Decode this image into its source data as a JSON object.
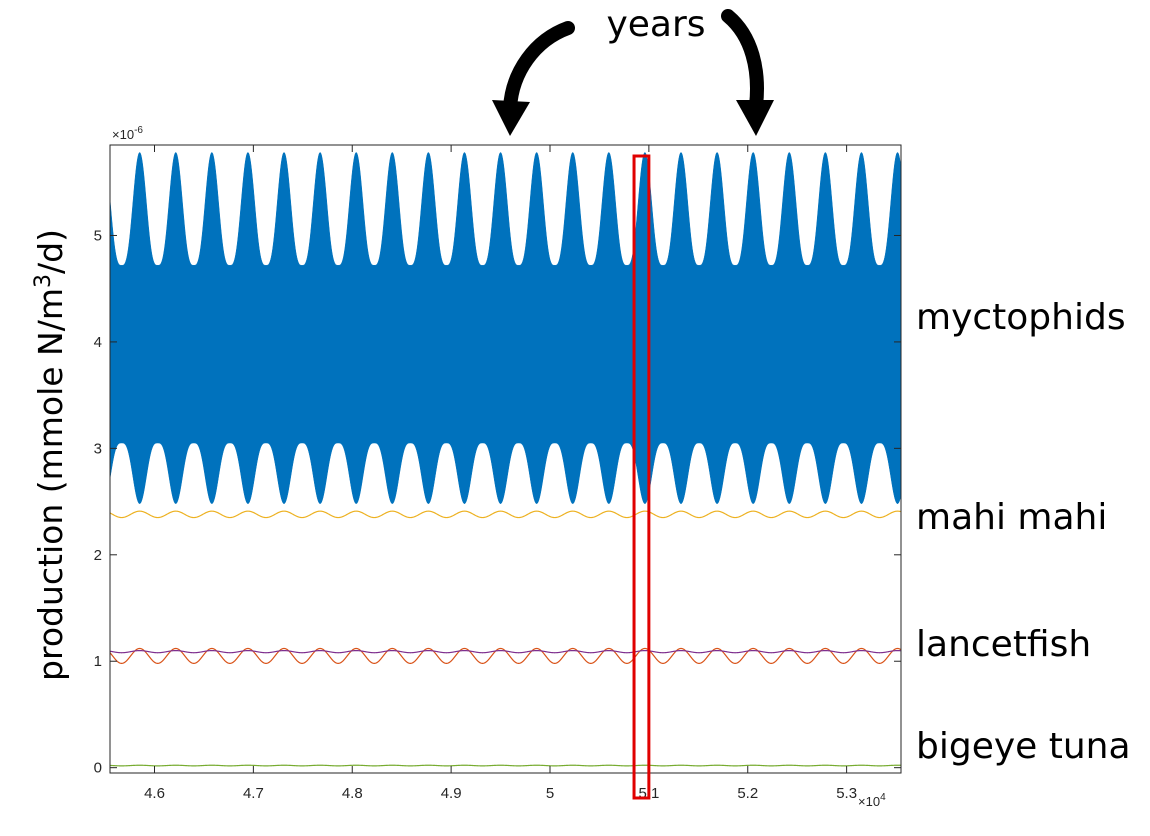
{
  "chart_data": {
    "type": "line",
    "title": "",
    "xlabel": "",
    "ylabel_main": "production (mmole N/m",
    "ylabel_sup": "3",
    "ylabel_tail": "/d)",
    "xlim": [
      45550,
      53550
    ],
    "ylim": [
      -5e-08,
      5.85e-06
    ],
    "x_ticks": [
      46000,
      47000,
      48000,
      49000,
      50000,
      51000,
      52000,
      53000
    ],
    "x_tick_labels": [
      "4.6",
      "4.7",
      "4.8",
      "4.9",
      "5",
      "5.1",
      "5.2",
      "5.3"
    ],
    "x_exponent_base": "×10",
    "x_exponent_power": "4",
    "y_ticks": [
      0,
      1e-06,
      2e-06,
      3e-06,
      4e-06,
      5e-06
    ],
    "y_tick_labels": [
      "0",
      "1",
      "2",
      "3",
      "4",
      "5"
    ],
    "y_exponent_base": "×10",
    "y_exponent_power": "-6",
    "annotation_years": "years",
    "highlight_box_x": [
      50850,
      51000
    ],
    "series": [
      {
        "label": "myctophids",
        "color": "#0072BD",
        "fill_band": true,
        "period_days": 365,
        "upper_max": 5.78e-06,
        "upper_min": 4.72e-06,
        "lower_min": 2.48e-06,
        "lower_max": 3.05e-06
      },
      {
        "label": "mahi mahi",
        "color": "#EDB120",
        "mean": 2.38e-06,
        "amplitude": 3e-08,
        "period_days": 365
      },
      {
        "label": "lancetfish",
        "color": "#D95319",
        "mean": 1.05e-06,
        "amplitude": 7e-08,
        "period_days": 365
      },
      {
        "label": "",
        "color": "#7E2F8E",
        "mean": 1.09e-06,
        "amplitude": 1e-08,
        "period_days": 365
      },
      {
        "label": "bigeye tuna",
        "color": "#77AC30",
        "mean": 2e-08,
        "amplitude": 3e-09,
        "period_days": 365
      }
    ]
  }
}
